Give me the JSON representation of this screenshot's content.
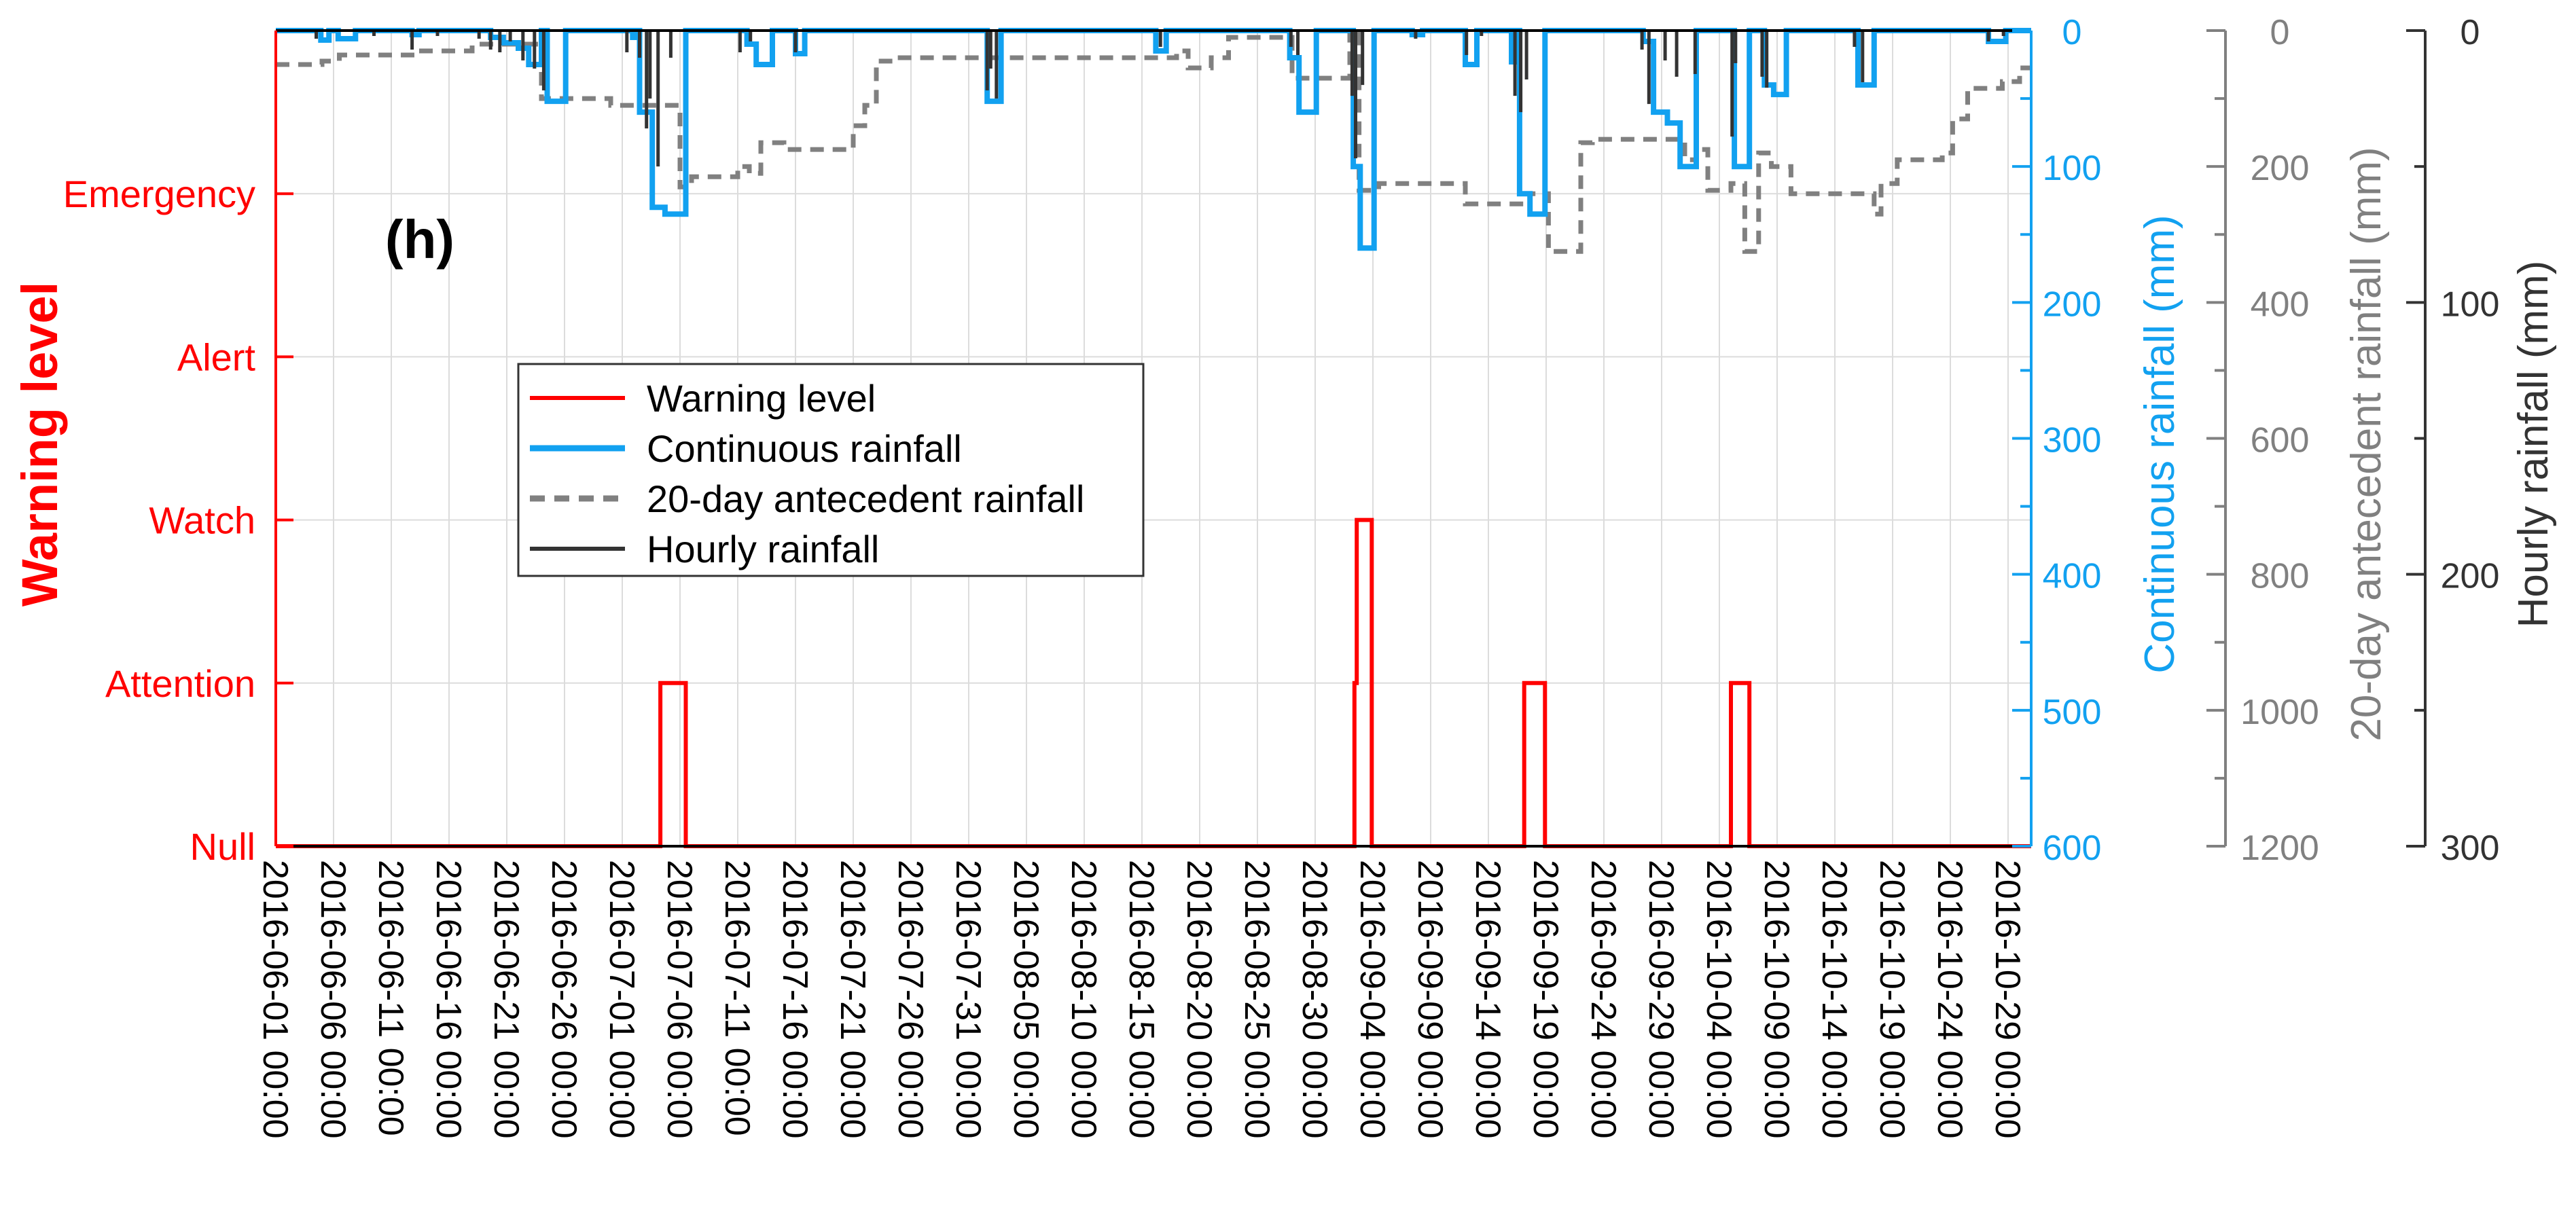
{
  "chart_data": {
    "type": "line",
    "panel_label": "(h)",
    "x_tick_labels": [
      "2016-06-01 00:00",
      "2016-06-06 00:00",
      "2016-06-11 00:00",
      "2016-06-16 00:00",
      "2016-06-21 00:00",
      "2016-06-26 00:00",
      "2016-07-01 00:00",
      "2016-07-06 00:00",
      "2016-07-11 00:00",
      "2016-07-16 00:00",
      "2016-07-21 00:00",
      "2016-07-26 00:00",
      "2016-07-31 00:00",
      "2016-08-05 00:00",
      "2016-08-10 00:00",
      "2016-08-15 00:00",
      "2016-08-20 00:00",
      "2016-08-25 00:00",
      "2016-08-30 00:00",
      "2016-09-04 00:00",
      "2016-09-09 00:00",
      "2016-09-14 00:00",
      "2016-09-19 00:00",
      "2016-09-24 00:00",
      "2016-09-29 00:00",
      "2016-10-04 00:00",
      "2016-10-09 00:00",
      "2016-10-14 00:00",
      "2016-10-19 00:00",
      "2016-10-24 00:00",
      "2016-10-29 00:00"
    ],
    "x_range_days": [
      0,
      152
    ],
    "x_tick_interval_days": 5,
    "axes": {
      "warning": {
        "label": "Warning level",
        "color": "#ff0000",
        "ticks": [
          "Null",
          "Attention",
          "Watch",
          "Alert",
          "Emergency"
        ],
        "range": [
          0,
          5
        ]
      },
      "continuous": {
        "label": "Continuous rainfall (mm)",
        "color": "#12a1f0",
        "range": [
          0,
          600
        ],
        "reversed": true,
        "ticks": [
          "0",
          "100",
          "200",
          "300",
          "400",
          "500",
          "600"
        ],
        "minor_step": 50
      },
      "antecedent": {
        "label": "20-day antecedent rainfall (mm)",
        "color": "#808080",
        "range": [
          0,
          1200
        ],
        "reversed": true,
        "ticks": [
          "0",
          "200",
          "400",
          "600",
          "800",
          "1000",
          "1200"
        ],
        "minor_step": 100
      },
      "hourly": {
        "label": "Hourly rainfall (mm)",
        "color": "#333333",
        "range": [
          0,
          300
        ],
        "reversed": true,
        "ticks": [
          "0",
          "100",
          "200",
          "300"
        ],
        "minor_step": 50
      }
    },
    "legend": {
      "position": "center-left",
      "entries": [
        {
          "label": "Warning level",
          "color": "#ff0000",
          "style": "solid"
        },
        {
          "label": "Continuous rainfall",
          "color": "#12a1f0",
          "style": "solid"
        },
        {
          "label": "20-day antecedent rainfall",
          "color": "#808080",
          "style": "dashed"
        },
        {
          "label": "Hourly rainfall",
          "color": "#333333",
          "style": "solid"
        }
      ]
    },
    "series": [
      {
        "name": "Warning level",
        "axis": "warning",
        "points": [
          [
            0,
            0
          ],
          [
            33.3,
            0
          ],
          [
            33.3,
            1
          ],
          [
            35.5,
            1
          ],
          [
            35.5,
            0
          ],
          [
            93.4,
            0
          ],
          [
            93.4,
            1
          ],
          [
            93.6,
            1
          ],
          [
            93.6,
            2
          ],
          [
            94.9,
            2
          ],
          [
            94.9,
            0
          ],
          [
            108.1,
            0
          ],
          [
            108.1,
            1
          ],
          [
            109.9,
            1
          ],
          [
            109.9,
            0
          ],
          [
            126,
            0
          ],
          [
            126,
            1
          ],
          [
            127.6,
            1
          ],
          [
            127.6,
            0
          ],
          [
            152,
            0
          ]
        ]
      },
      {
        "name": "Continuous rainfall",
        "axis": "continuous",
        "points": [
          [
            0,
            0
          ],
          [
            3.9,
            0
          ],
          [
            3.9,
            7
          ],
          [
            4.6,
            7
          ],
          [
            4.6,
            0
          ],
          [
            5.4,
            0
          ],
          [
            5.4,
            6
          ],
          [
            6.9,
            6
          ],
          [
            6.9,
            0
          ],
          [
            11.8,
            0
          ],
          [
            11.8,
            3
          ],
          [
            12.4,
            3
          ],
          [
            12.4,
            0
          ],
          [
            18.6,
            0
          ],
          [
            18.6,
            5
          ],
          [
            19.7,
            5
          ],
          [
            19.7,
            9
          ],
          [
            21,
            9
          ],
          [
            21,
            13
          ],
          [
            21.9,
            13
          ],
          [
            21.9,
            25
          ],
          [
            23,
            25
          ],
          [
            23,
            0
          ],
          [
            23.5,
            0
          ],
          [
            23.5,
            52
          ],
          [
            25.1,
            52
          ],
          [
            25.1,
            0
          ],
          [
            30.9,
            0
          ],
          [
            30.9,
            5
          ],
          [
            31.1,
            5
          ],
          [
            31.1,
            0
          ],
          [
            31.5,
            0
          ],
          [
            31.5,
            60
          ],
          [
            32.6,
            60
          ],
          [
            32.6,
            130
          ],
          [
            33.7,
            130
          ],
          [
            33.7,
            135
          ],
          [
            35.5,
            135
          ],
          [
            35.5,
            0
          ],
          [
            40.8,
            0
          ],
          [
            40.8,
            10
          ],
          [
            41.6,
            10
          ],
          [
            41.6,
            25
          ],
          [
            43,
            25
          ],
          [
            43,
            0
          ],
          [
            45,
            0
          ],
          [
            45,
            17
          ],
          [
            45.8,
            17
          ],
          [
            45.8,
            0
          ],
          [
            61.6,
            0
          ],
          [
            61.6,
            52
          ],
          [
            62.8,
            52
          ],
          [
            62.8,
            0
          ],
          [
            76.2,
            0
          ],
          [
            76.2,
            15
          ],
          [
            77.1,
            15
          ],
          [
            77.1,
            0
          ],
          [
            87.8,
            0
          ],
          [
            87.8,
            20
          ],
          [
            88.6,
            20
          ],
          [
            88.6,
            60
          ],
          [
            90.1,
            60
          ],
          [
            90.1,
            0
          ],
          [
            93.3,
            0
          ],
          [
            93.3,
            100
          ],
          [
            93.9,
            100
          ],
          [
            93.9,
            160
          ],
          [
            95.1,
            160
          ],
          [
            95.1,
            0
          ],
          [
            98.4,
            0
          ],
          [
            98.4,
            3
          ],
          [
            99.3,
            3
          ],
          [
            99.3,
            0
          ],
          [
            103,
            0
          ],
          [
            103,
            25
          ],
          [
            104,
            25
          ],
          [
            104,
            0
          ],
          [
            107,
            0
          ],
          [
            107,
            23
          ],
          [
            107.3,
            23
          ],
          [
            107.3,
            0
          ],
          [
            107.7,
            0
          ],
          [
            107.7,
            120
          ],
          [
            108.6,
            120
          ],
          [
            108.6,
            135
          ],
          [
            109.9,
            135
          ],
          [
            109.9,
            0
          ],
          [
            118.4,
            0
          ],
          [
            118.4,
            8
          ],
          [
            119.3,
            8
          ],
          [
            119.3,
            60
          ],
          [
            120.5,
            60
          ],
          [
            120.5,
            68
          ],
          [
            121.6,
            68
          ],
          [
            121.6,
            100
          ],
          [
            123,
            100
          ],
          [
            123,
            0
          ],
          [
            126.3,
            0
          ],
          [
            126.3,
            100
          ],
          [
            127.6,
            100
          ],
          [
            127.6,
            0
          ],
          [
            128.9,
            0
          ],
          [
            128.9,
            40
          ],
          [
            129.7,
            40
          ],
          [
            129.7,
            47
          ],
          [
            130.8,
            47
          ],
          [
            130.8,
            0
          ],
          [
            137,
            0
          ],
          [
            137,
            40
          ],
          [
            138.4,
            40
          ],
          [
            138.4,
            0
          ],
          [
            148.3,
            0
          ],
          [
            148.3,
            8
          ],
          [
            149.8,
            8
          ],
          [
            149.8,
            0
          ],
          [
            152,
            0
          ]
        ]
      },
      {
        "name": "20-day antecedent rainfall",
        "axis": "antecedent",
        "points": [
          [
            0,
            50
          ],
          [
            4,
            50
          ],
          [
            4,
            45
          ],
          [
            5.5,
            45
          ],
          [
            5.5,
            36
          ],
          [
            12,
            36
          ],
          [
            12,
            30
          ],
          [
            17,
            30
          ],
          [
            17,
            20
          ],
          [
            23,
            20
          ],
          [
            23,
            100
          ],
          [
            29,
            100
          ],
          [
            29,
            110
          ],
          [
            35,
            110
          ],
          [
            35,
            230
          ],
          [
            36,
            230
          ],
          [
            36,
            215
          ],
          [
            40,
            215
          ],
          [
            40,
            200
          ],
          [
            41,
            200
          ],
          [
            41,
            210
          ],
          [
            42,
            210
          ],
          [
            42,
            165
          ],
          [
            44,
            165
          ],
          [
            44,
            175
          ],
          [
            50,
            175
          ],
          [
            50,
            140
          ],
          [
            51,
            140
          ],
          [
            51,
            110
          ],
          [
            52,
            110
          ],
          [
            52,
            45
          ],
          [
            53.5,
            45
          ],
          [
            53.5,
            40
          ],
          [
            78,
            40
          ],
          [
            78,
            30
          ],
          [
            79,
            30
          ],
          [
            79,
            55
          ],
          [
            81,
            55
          ],
          [
            81,
            40
          ],
          [
            82.5,
            40
          ],
          [
            82.5,
            10
          ],
          [
            88,
            10
          ],
          [
            88,
            70
          ],
          [
            93,
            70
          ],
          [
            93,
            0
          ],
          [
            93.8,
            0
          ],
          [
            93.8,
            235
          ],
          [
            95.5,
            235
          ],
          [
            95.5,
            225
          ],
          [
            103,
            225
          ],
          [
            103,
            255
          ],
          [
            108.6,
            255
          ],
          [
            108.6,
            240
          ],
          [
            110.2,
            240
          ],
          [
            110.2,
            325
          ],
          [
            113,
            325
          ],
          [
            113,
            165
          ],
          [
            114,
            165
          ],
          [
            114,
            160
          ],
          [
            122,
            160
          ],
          [
            122,
            190
          ],
          [
            123,
            190
          ],
          [
            123,
            175
          ],
          [
            124,
            175
          ],
          [
            124,
            235
          ],
          [
            126,
            235
          ],
          [
            126,
            225
          ],
          [
            127.2,
            225
          ],
          [
            127.2,
            325
          ],
          [
            128.4,
            325
          ],
          [
            128.4,
            180
          ],
          [
            129.5,
            180
          ],
          [
            129.5,
            200
          ],
          [
            131.2,
            200
          ],
          [
            131.2,
            240
          ],
          [
            138.4,
            240
          ],
          [
            138.4,
            270
          ],
          [
            139,
            270
          ],
          [
            139,
            225
          ],
          [
            140.4,
            225
          ],
          [
            140.4,
            190
          ],
          [
            144.3,
            190
          ],
          [
            144.3,
            180
          ],
          [
            145.2,
            180
          ],
          [
            145.2,
            130
          ],
          [
            146.5,
            130
          ],
          [
            146.5,
            85
          ],
          [
            149.5,
            85
          ],
          [
            149.5,
            75
          ],
          [
            151,
            75
          ],
          [
            151,
            55
          ],
          [
            152,
            55
          ]
        ]
      },
      {
        "name": "Hourly rainfall",
        "axis": "hourly",
        "bars": [
          [
            3.5,
            3
          ],
          [
            8.5,
            2
          ],
          [
            11.8,
            7
          ],
          [
            14,
            2
          ],
          [
            17.6,
            3
          ],
          [
            18.6,
            7
          ],
          [
            19.4,
            8
          ],
          [
            20.3,
            4
          ],
          [
            21.4,
            11
          ],
          [
            22.4,
            14
          ],
          [
            23.2,
            22
          ],
          [
            30.4,
            8
          ],
          [
            31.5,
            10
          ],
          [
            32.1,
            36
          ],
          [
            32.4,
            25
          ],
          [
            33.1,
            50
          ],
          [
            34.2,
            10
          ],
          [
            40.2,
            8
          ],
          [
            41.1,
            4
          ],
          [
            45,
            8
          ],
          [
            61.6,
            22
          ],
          [
            61.9,
            14
          ],
          [
            62.4,
            25
          ],
          [
            76.6,
            6
          ],
          [
            87.9,
            6
          ],
          [
            88.5,
            9
          ],
          [
            93.2,
            24
          ],
          [
            93.5,
            47
          ],
          [
            94.1,
            20
          ],
          [
            98.7,
            3
          ],
          [
            103.1,
            9
          ],
          [
            104.4,
            2
          ],
          [
            107.3,
            24
          ],
          [
            107.8,
            30
          ],
          [
            108.3,
            18
          ],
          [
            118.3,
            7
          ],
          [
            118.9,
            27
          ],
          [
            120.3,
            11
          ],
          [
            121.3,
            17
          ],
          [
            122.9,
            16
          ],
          [
            126.1,
            39
          ],
          [
            126.4,
            12
          ],
          [
            128.7,
            17
          ],
          [
            129.1,
            21
          ],
          [
            136.7,
            6
          ],
          [
            137.4,
            19
          ],
          [
            148.3,
            4
          ],
          [
            149.6,
            2
          ]
        ]
      }
    ]
  }
}
